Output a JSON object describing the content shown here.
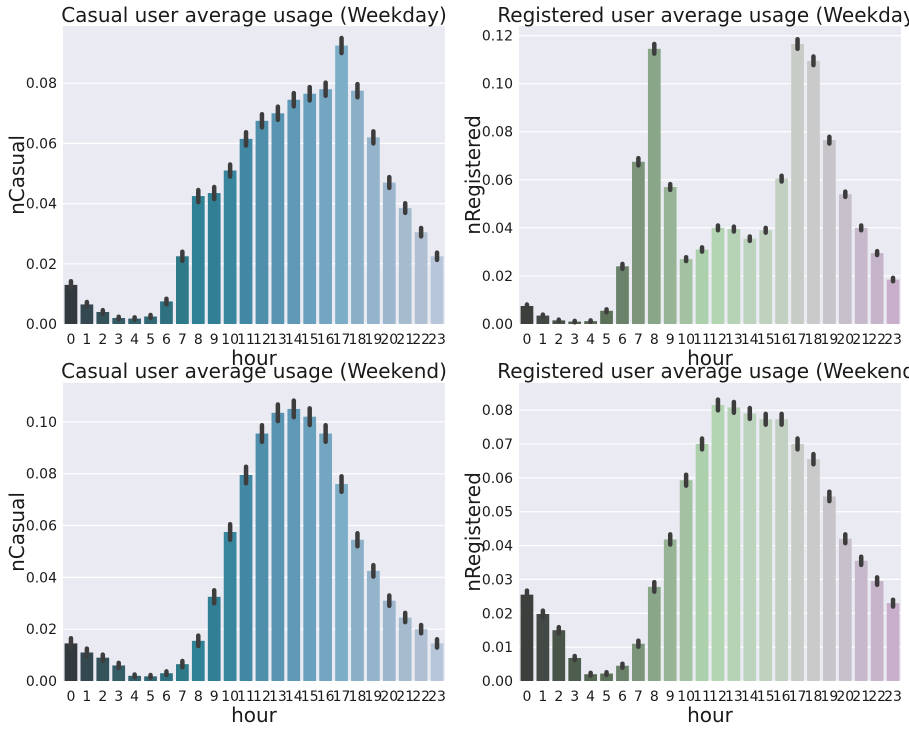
{
  "chart_data": [
    {
      "type": "bar",
      "title": "Casual user average usage (Weekday)",
      "xlabel": "hour",
      "ylabel": "nCasual",
      "categories": [
        "0",
        "1",
        "2",
        "3",
        "4",
        "5",
        "6",
        "7",
        "8",
        "9",
        "10",
        "11",
        "12",
        "13",
        "14",
        "15",
        "16",
        "17",
        "18",
        "19",
        "20",
        "21",
        "22",
        "23"
      ],
      "values": [
        0.013,
        0.0065,
        0.004,
        0.002,
        0.0018,
        0.0025,
        0.0075,
        0.0225,
        0.0425,
        0.0435,
        0.051,
        0.0615,
        0.0675,
        0.07,
        0.0745,
        0.0765,
        0.078,
        0.0925,
        0.0775,
        0.062,
        0.047,
        0.0385,
        0.0305,
        0.0225
      ],
      "errors": [
        0.0012,
        0.0008,
        0.0006,
        0.0004,
        0.0004,
        0.0005,
        0.0009,
        0.0015,
        0.002,
        0.002,
        0.002,
        0.0022,
        0.0022,
        0.0022,
        0.0022,
        0.0022,
        0.0022,
        0.0025,
        0.0022,
        0.002,
        0.0018,
        0.0016,
        0.0014,
        0.0012
      ],
      "ylim": [
        0,
        0.099
      ],
      "yticks": [
        "0.00",
        "0.02",
        "0.04",
        "0.06",
        "0.08"
      ],
      "grid": true,
      "palette": [
        "#323a3d",
        "#334850",
        "#335259",
        "#335c66",
        "#32616e",
        "#306875",
        "#2e7080",
        "#2e7a89",
        "#2f8196",
        "#307f95",
        "#38879e",
        "#4088a3",
        "#4f8fab",
        "#5995b3",
        "#6099b8",
        "#69a0bd",
        "#75a6c1",
        "#7caec8",
        "#8aafc7",
        "#93b4cb",
        "#9cb7cd",
        "#a5bccf",
        "#b0c0d2",
        "#b7c6d9"
      ]
    },
    {
      "type": "bar",
      "title": "Registered user average usage (Weekday)",
      "xlabel": "hour",
      "ylabel": "nRegistered",
      "categories": [
        "0",
        "1",
        "2",
        "3",
        "4",
        "5",
        "6",
        "7",
        "8",
        "9",
        "10",
        "11",
        "12",
        "13",
        "14",
        "15",
        "16",
        "17",
        "18",
        "19",
        "20",
        "21",
        "22",
        "23"
      ],
      "values": [
        0.0075,
        0.0035,
        0.0015,
        0.001,
        0.0012,
        0.0055,
        0.024,
        0.0675,
        0.1145,
        0.057,
        0.027,
        0.031,
        0.04,
        0.0395,
        0.0355,
        0.039,
        0.0605,
        0.1165,
        0.1095,
        0.0765,
        0.054,
        0.04,
        0.0295,
        0.0185
      ],
      "errors": [
        0.0006,
        0.0004,
        0.0003,
        0.0003,
        0.0003,
        0.0006,
        0.001,
        0.0015,
        0.002,
        0.0012,
        0.0008,
        0.0009,
        0.001,
        0.001,
        0.0009,
        0.001,
        0.0012,
        0.002,
        0.0018,
        0.0014,
        0.0011,
        0.001,
        0.0008,
        0.0007
      ],
      "ylim": [
        0,
        0.124
      ],
      "yticks": [
        "0.00",
        "0.02",
        "0.04",
        "0.06",
        "0.08",
        "0.10",
        "0.12"
      ],
      "grid": true,
      "palette": [
        "#3c3f3c",
        "#434944",
        "#495449",
        "#4e5e4e",
        "#546852",
        "#5b7259",
        "#6b826a",
        "#7c957b",
        "#8aa689",
        "#97b596",
        "#a2c2a1",
        "#acd0ab",
        "#b3d5b2",
        "#b6d3b6",
        "#bcd3bc",
        "#bed2be",
        "#c2d0c2",
        "#c7ccc7",
        "#c9cac9",
        "#c7c5c9",
        "#c7bfca",
        "#c7b9cb",
        "#c6b4cb",
        "#c8aecb"
      ]
    },
    {
      "type": "bar",
      "title": "Casual user average usage (Weekend)",
      "xlabel": "hour",
      "ylabel": "nCasual",
      "categories": [
        "0",
        "1",
        "2",
        "3",
        "4",
        "5",
        "6",
        "7",
        "8",
        "9",
        "10",
        "11",
        "12",
        "13",
        "14",
        "15",
        "16",
        "17",
        "18",
        "19",
        "20",
        "21",
        "22",
        "23"
      ],
      "values": [
        0.0145,
        0.011,
        0.009,
        0.006,
        0.002,
        0.0018,
        0.003,
        0.0065,
        0.0155,
        0.0325,
        0.0575,
        0.0795,
        0.0955,
        0.1035,
        0.105,
        0.102,
        0.0955,
        0.076,
        0.0545,
        0.0425,
        0.031,
        0.0245,
        0.02,
        0.0145
      ],
      "errors": [
        0.002,
        0.0015,
        0.0012,
        0.001,
        0.0005,
        0.0005,
        0.0007,
        0.0012,
        0.002,
        0.0025,
        0.003,
        0.0032,
        0.0032,
        0.0032,
        0.0032,
        0.0032,
        0.0032,
        0.003,
        0.0025,
        0.0022,
        0.002,
        0.0018,
        0.0016,
        0.0016
      ],
      "ylim": [
        0,
        0.115
      ],
      "yticks": [
        "0.00",
        "0.02",
        "0.04",
        "0.06",
        "0.08",
        "0.10"
      ],
      "grid": true,
      "palette": [
        "#323a3d",
        "#334850",
        "#335259",
        "#335c66",
        "#32616e",
        "#306875",
        "#2e7080",
        "#2e7a89",
        "#2f8196",
        "#307f95",
        "#38879e",
        "#4088a3",
        "#4f8fab",
        "#5995b3",
        "#6099b8",
        "#69a0bd",
        "#75a6c1",
        "#7caec8",
        "#8aafc7",
        "#93b4cb",
        "#9cb7cd",
        "#a5bccf",
        "#b0c0d2",
        "#b7c6d9"
      ]
    },
    {
      "type": "bar",
      "title": "Registered user average usage (Weekend)",
      "xlabel": "hour",
      "ylabel": "nRegistered",
      "categories": [
        "0",
        "1",
        "2",
        "3",
        "4",
        "5",
        "6",
        "7",
        "8",
        "9",
        "10",
        "11",
        "12",
        "13",
        "14",
        "15",
        "16",
        "17",
        "18",
        "19",
        "20",
        "21",
        "22",
        "23"
      ],
      "values": [
        0.0255,
        0.0198,
        0.015,
        0.0068,
        0.002,
        0.0022,
        0.0045,
        0.011,
        0.0278,
        0.0418,
        0.0593,
        0.07,
        0.0815,
        0.0808,
        0.079,
        0.0773,
        0.0773,
        0.07,
        0.0655,
        0.0545,
        0.042,
        0.0355,
        0.0295,
        0.023
      ],
      "errors": [
        0.0012,
        0.001,
        0.0009,
        0.0006,
        0.0004,
        0.0004,
        0.0006,
        0.0009,
        0.0014,
        0.0015,
        0.0016,
        0.0016,
        0.0016,
        0.0016,
        0.0016,
        0.0016,
        0.0016,
        0.0016,
        0.0015,
        0.0014,
        0.0013,
        0.0012,
        0.0011,
        0.001
      ],
      "ylim": [
        0,
        0.088
      ],
      "yticks": [
        "0.00",
        "0.01",
        "0.02",
        "0.03",
        "0.04",
        "0.05",
        "0.06",
        "0.07",
        "0.08"
      ],
      "grid": true,
      "palette": [
        "#3c3f3c",
        "#434944",
        "#495449",
        "#4e5e4e",
        "#546852",
        "#5b7259",
        "#6b826a",
        "#7c957b",
        "#8aa689",
        "#97b596",
        "#a2c2a1",
        "#acd0ab",
        "#b3d5b2",
        "#b6d3b6",
        "#bcd3bc",
        "#bed2be",
        "#c2d0c2",
        "#c7ccc7",
        "#c9cac9",
        "#c7c5c9",
        "#c7bfca",
        "#c7b9cb",
        "#c6b4cb",
        "#c8aecb"
      ]
    }
  ]
}
